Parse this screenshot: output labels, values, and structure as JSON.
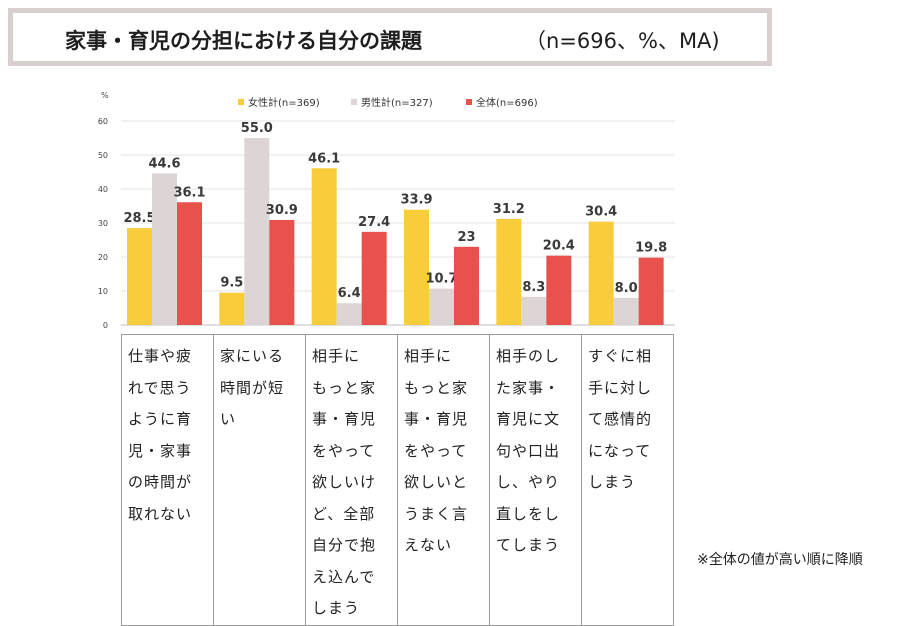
{
  "title": "家事・育児の分担における自分の課題",
  "subtitle": "（n=696、%、MA)",
  "note": "※全体の値が高い順に降順",
  "chart_data": {
    "type": "bar",
    "ylabel": "%",
    "ylim": [
      0,
      60
    ],
    "yticks": [
      0,
      10,
      20,
      30,
      40,
      50,
      60
    ],
    "categories": [
      "仕事や疲れで思うように育児・家事の時間が取れない",
      "家にいる時間が短い",
      "相手にもっと家事・育児をやって欲しいけど、全部自分で抱え込んでしまう",
      "相手にもっと家事・育児をやって欲しいとうまく言えない",
      "相手のした家事・育児に文句や口出し、やり直しをしてしまう",
      "すぐに相手に対して感情的になってしまう"
    ],
    "category_lines": [
      [
        "仕事や疲",
        "れで思う",
        "ように育",
        "児・家事",
        "の時間が",
        "取れない"
      ],
      [
        "家にいる",
        "時間が短",
        "い"
      ],
      [
        "相手に",
        "もっと家",
        "事・育児",
        "をやって",
        "欲しいけ",
        "ど、全部",
        "自分で抱",
        "え込んで",
        "しまう"
      ],
      [
        "相手に",
        "もっと家",
        "事・育児",
        "をやって",
        "欲しいと",
        "うまく言",
        "えない"
      ],
      [
        "相手のし",
        "た家事・",
        "育児に文",
        "句や口出",
        "し、やり",
        "直しをし",
        "てしまう"
      ],
      [
        "すぐに相",
        "手に対し",
        "て感情的",
        "になって",
        "しまう"
      ]
    ],
    "series": [
      {
        "name": "女性計(n=369)",
        "color": "#f9cc3c",
        "values": [
          28.5,
          9.5,
          46.1,
          33.9,
          31.2,
          30.4
        ],
        "labels": [
          "28.5",
          "9.5",
          "46.1",
          "33.9",
          "31.2",
          "30.4"
        ]
      },
      {
        "name": "男性計(n=327)",
        "color": "#ddd5d5",
        "values": [
          44.6,
          55.0,
          6.4,
          10.7,
          8.3,
          8.0
        ],
        "labels": [
          "44.6",
          "55.0",
          "6.4",
          "10.7",
          "8.3",
          "8.0"
        ]
      },
      {
        "name": "全体(n=696)",
        "color": "#e8524d",
        "values": [
          36.1,
          30.9,
          27.4,
          23,
          20.4,
          19.8
        ],
        "labels": [
          "36.1",
          "30.9",
          "27.4",
          "23",
          "20.4",
          "19.8"
        ]
      }
    ]
  }
}
